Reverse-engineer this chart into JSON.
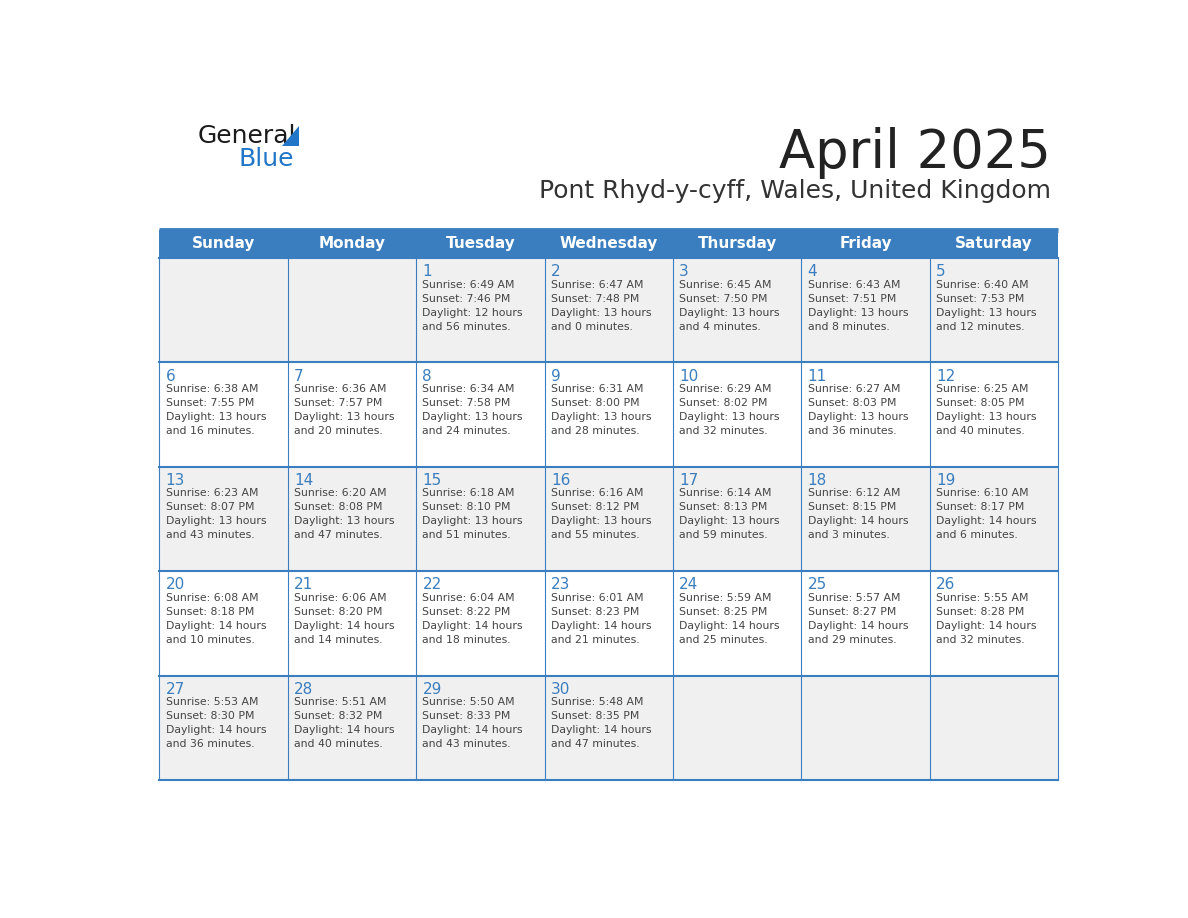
{
  "title": "April 2025",
  "subtitle": "Pont Rhyd-y-cyff, Wales, United Kingdom",
  "header_bg_color": "#3a7ebf",
  "header_text_color": "#ffffff",
  "cell_bg_color": "#ffffff",
  "alt_cell_bg_color": "#f0f0f0",
  "day_names": [
    "Sunday",
    "Monday",
    "Tuesday",
    "Wednesday",
    "Thursday",
    "Friday",
    "Saturday"
  ],
  "title_color": "#222222",
  "subtitle_color": "#333333",
  "day_number_color": "#3a7ebf",
  "cell_text_color": "#444444",
  "border_color": "#3a7ebf",
  "sep_line_color": "#3a7ebf",
  "logo_general_color": "#1a1a1a",
  "logo_blue_color": "#2176c7",
  "logo_triangle_color": "#2176c7",
  "calendar": [
    [
      {
        "day": null,
        "info": null
      },
      {
        "day": null,
        "info": null
      },
      {
        "day": 1,
        "info": "Sunrise: 6:49 AM\nSunset: 7:46 PM\nDaylight: 12 hours\nand 56 minutes."
      },
      {
        "day": 2,
        "info": "Sunrise: 6:47 AM\nSunset: 7:48 PM\nDaylight: 13 hours\nand 0 minutes."
      },
      {
        "day": 3,
        "info": "Sunrise: 6:45 AM\nSunset: 7:50 PM\nDaylight: 13 hours\nand 4 minutes."
      },
      {
        "day": 4,
        "info": "Sunrise: 6:43 AM\nSunset: 7:51 PM\nDaylight: 13 hours\nand 8 minutes."
      },
      {
        "day": 5,
        "info": "Sunrise: 6:40 AM\nSunset: 7:53 PM\nDaylight: 13 hours\nand 12 minutes."
      }
    ],
    [
      {
        "day": 6,
        "info": "Sunrise: 6:38 AM\nSunset: 7:55 PM\nDaylight: 13 hours\nand 16 minutes."
      },
      {
        "day": 7,
        "info": "Sunrise: 6:36 AM\nSunset: 7:57 PM\nDaylight: 13 hours\nand 20 minutes."
      },
      {
        "day": 8,
        "info": "Sunrise: 6:34 AM\nSunset: 7:58 PM\nDaylight: 13 hours\nand 24 minutes."
      },
      {
        "day": 9,
        "info": "Sunrise: 6:31 AM\nSunset: 8:00 PM\nDaylight: 13 hours\nand 28 minutes."
      },
      {
        "day": 10,
        "info": "Sunrise: 6:29 AM\nSunset: 8:02 PM\nDaylight: 13 hours\nand 32 minutes."
      },
      {
        "day": 11,
        "info": "Sunrise: 6:27 AM\nSunset: 8:03 PM\nDaylight: 13 hours\nand 36 minutes."
      },
      {
        "day": 12,
        "info": "Sunrise: 6:25 AM\nSunset: 8:05 PM\nDaylight: 13 hours\nand 40 minutes."
      }
    ],
    [
      {
        "day": 13,
        "info": "Sunrise: 6:23 AM\nSunset: 8:07 PM\nDaylight: 13 hours\nand 43 minutes."
      },
      {
        "day": 14,
        "info": "Sunrise: 6:20 AM\nSunset: 8:08 PM\nDaylight: 13 hours\nand 47 minutes."
      },
      {
        "day": 15,
        "info": "Sunrise: 6:18 AM\nSunset: 8:10 PM\nDaylight: 13 hours\nand 51 minutes."
      },
      {
        "day": 16,
        "info": "Sunrise: 6:16 AM\nSunset: 8:12 PM\nDaylight: 13 hours\nand 55 minutes."
      },
      {
        "day": 17,
        "info": "Sunrise: 6:14 AM\nSunset: 8:13 PM\nDaylight: 13 hours\nand 59 minutes."
      },
      {
        "day": 18,
        "info": "Sunrise: 6:12 AM\nSunset: 8:15 PM\nDaylight: 14 hours\nand 3 minutes."
      },
      {
        "day": 19,
        "info": "Sunrise: 6:10 AM\nSunset: 8:17 PM\nDaylight: 14 hours\nand 6 minutes."
      }
    ],
    [
      {
        "day": 20,
        "info": "Sunrise: 6:08 AM\nSunset: 8:18 PM\nDaylight: 14 hours\nand 10 minutes."
      },
      {
        "day": 21,
        "info": "Sunrise: 6:06 AM\nSunset: 8:20 PM\nDaylight: 14 hours\nand 14 minutes."
      },
      {
        "day": 22,
        "info": "Sunrise: 6:04 AM\nSunset: 8:22 PM\nDaylight: 14 hours\nand 18 minutes."
      },
      {
        "day": 23,
        "info": "Sunrise: 6:01 AM\nSunset: 8:23 PM\nDaylight: 14 hours\nand 21 minutes."
      },
      {
        "day": 24,
        "info": "Sunrise: 5:59 AM\nSunset: 8:25 PM\nDaylight: 14 hours\nand 25 minutes."
      },
      {
        "day": 25,
        "info": "Sunrise: 5:57 AM\nSunset: 8:27 PM\nDaylight: 14 hours\nand 29 minutes."
      },
      {
        "day": 26,
        "info": "Sunrise: 5:55 AM\nSunset: 8:28 PM\nDaylight: 14 hours\nand 32 minutes."
      }
    ],
    [
      {
        "day": 27,
        "info": "Sunrise: 5:53 AM\nSunset: 8:30 PM\nDaylight: 14 hours\nand 36 minutes."
      },
      {
        "day": 28,
        "info": "Sunrise: 5:51 AM\nSunset: 8:32 PM\nDaylight: 14 hours\nand 40 minutes."
      },
      {
        "day": 29,
        "info": "Sunrise: 5:50 AM\nSunset: 8:33 PM\nDaylight: 14 hours\nand 43 minutes."
      },
      {
        "day": 30,
        "info": "Sunrise: 5:48 AM\nSunset: 8:35 PM\nDaylight: 14 hours\nand 47 minutes."
      },
      {
        "day": null,
        "info": null
      },
      {
        "day": null,
        "info": null
      },
      {
        "day": null,
        "info": null
      }
    ]
  ]
}
